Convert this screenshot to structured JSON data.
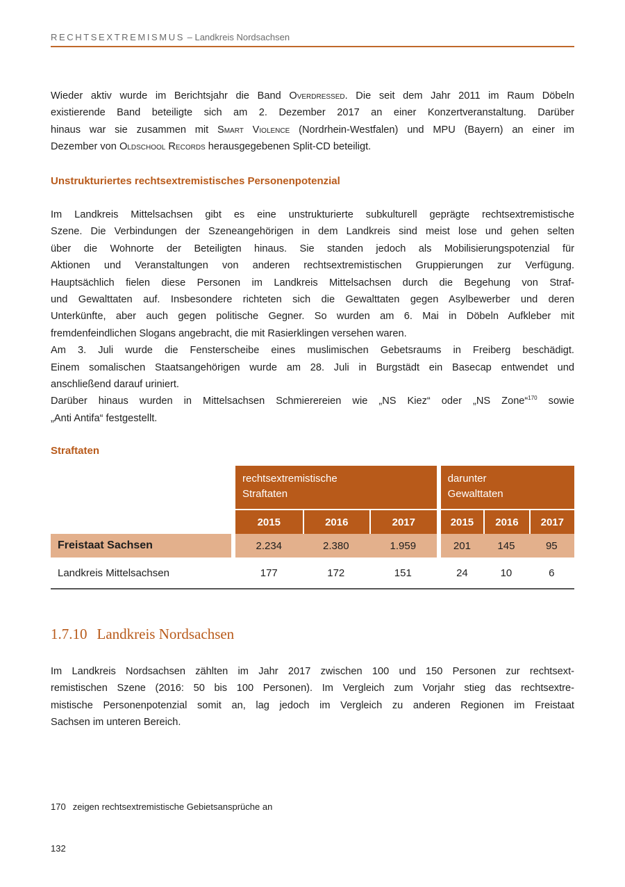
{
  "running_header": {
    "section": "RECHTSEXTREMISMUS",
    "subtitle": "– Landkreis Nordsachsen"
  },
  "paragraph1": [
    [
      {
        "t": "Wieder aktiv wurde im Berichtsjahr die Band "
      },
      {
        "t": "Overdressed",
        "sc": true
      },
      {
        "t": ". Die seit dem Jahr 2011 im Raum Döbeln"
      }
    ],
    [
      {
        "t": "existierende Band beteiligte sich am 2. Dezember 2017 an einer Konzertveranstaltung. Darüber"
      }
    ],
    [
      {
        "t": "hinaus war sie zusammen mit "
      },
      {
        "t": "Smart Violence",
        "sc": true
      },
      {
        "t": " (Nordrhein-Westfalen) und MPU (Bayern) an einer im"
      }
    ],
    [
      {
        "t": "Dezember von "
      },
      {
        "t": "Oldschool Records",
        "sc": true
      },
      {
        "t": " herausgegebenen Split-CD beteiligt."
      }
    ]
  ],
  "subheading1": "Unstrukturiertes rechtsextremistisches Personenpotenzial",
  "paragraph2": [
    [
      {
        "t": "Im Landkreis Mittelsachsen gibt es eine unstrukturierte subkulturell geprägte rechtsextremistische"
      }
    ],
    [
      {
        "t": "Szene. Die Verbindungen der Szeneangehörigen in dem Landkreis sind meist lose und gehen selten"
      }
    ],
    [
      {
        "t": "über die Wohnorte der Beteiligten hinaus. Sie standen jedoch als Mobilisierungspotenzial für"
      }
    ],
    [
      {
        "t": "Aktionen und Veranstaltungen von anderen rechtsextremistischen Gruppierungen zur Verfügung."
      }
    ],
    [
      {
        "t": "Hauptsächlich fielen diese Personen im Landkreis Mittelsachsen durch die Begehung von Straf-"
      }
    ],
    [
      {
        "t": "und Gewalttaten auf. Insbesondere richteten sich die Gewalttaten gegen Asylbewerber und deren"
      }
    ],
    [
      {
        "t": "Unterkünfte, aber auch gegen politische Gegner. So wurden am 6. Mai in Döbeln Aufkleber mit"
      }
    ],
    [
      {
        "t": "fremdenfeindlichen Slogans angebracht, die mit Rasierklingen versehen waren."
      }
    ],
    [
      {
        "t": "Am 3. Juli wurde die Fensterscheibe eines muslimischen Gebetsraums in Freiberg beschädigt."
      }
    ],
    [
      {
        "t": "Einem somalischen Staatsangehörigen wurde am 28. Juli in Burgstädt ein Basecap entwendet und"
      }
    ],
    [
      {
        "t": "anschließend darauf uriniert."
      }
    ],
    [
      {
        "t": "Darüber hinaus wurden in Mittelsachsen Schmierereien wie „NS Kiez“ oder „NS Zone“"
      },
      {
        "t": "170",
        "sup": true
      },
      {
        "t": " sowie"
      }
    ],
    [
      {
        "t": "„Anti Antifa“ festgestellt."
      }
    ]
  ],
  "paragraph2_last_lines": [
    7,
    10,
    12
  ],
  "subheading2": "Straftaten",
  "table": {
    "group_headers": [
      [
        "rechtsextremistische",
        "Straftaten"
      ],
      [
        "darunter",
        "Gewalttaten"
      ]
    ],
    "years": [
      "2015",
      "2016",
      "2017"
    ],
    "rows": [
      {
        "label": "Freistaat Sachsen",
        "straftaten": [
          "2.234",
          "2.380",
          "1.959"
        ],
        "gewalttaten": [
          "201",
          "145",
          "95"
        ]
      },
      {
        "label": "Landkreis Mittelsachsen",
        "straftaten": [
          "177",
          "172",
          "151"
        ],
        "gewalttaten": [
          "24",
          "10",
          "6"
        ]
      }
    ]
  },
  "section": {
    "number": "1.7.10",
    "title": "Landkreis Nordsachsen"
  },
  "paragraph3": [
    [
      {
        "t": "Im Landkreis Nordsachsen zählten im Jahr 2017 zwischen 100 und 150 Personen zur rechtsext-"
      }
    ],
    [
      {
        "t": "remistischen Szene (2016: 50 bis 100 Personen). Im Vergleich zum Vorjahr stieg das rechtsextre-"
      }
    ],
    [
      {
        "t": "mistische Personenpotenzial somit an, lag jedoch im Vergleich zu anderen Regionen im Freistaat"
      }
    ],
    [
      {
        "t": "Sachsen im unteren Bereich."
      }
    ]
  ],
  "footnote": {
    "number": "170",
    "text": "zeigen rechtsextremistische Gebietsansprüche an"
  },
  "page_number": "132",
  "colors": {
    "accent": "#b85a1a",
    "accent_light": "#e3b08c",
    "rule": "#c0682a"
  }
}
